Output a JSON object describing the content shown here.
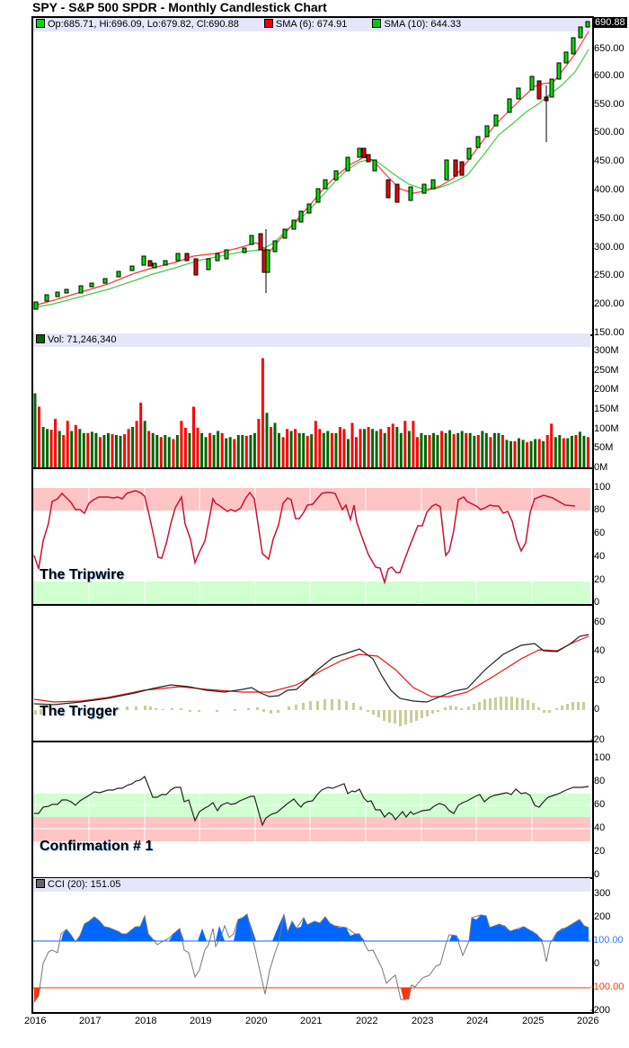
{
  "header": {
    "title": "SPY - S&P 500 SPDR - Monthly Candlestick Chart"
  },
  "price_panel": {
    "legend": {
      "ohlc": "Op:685.71, Hi:696.09, Lo:679.82, Cl:690.88",
      "sma6": "SMA (6): 674.91",
      "sma10": "SMA (10): 644.33"
    },
    "last_price_tag": "690.88",
    "y_ticks": [
      "650.00",
      "600.00",
      "550.00",
      "500.00",
      "450.00",
      "400.00",
      "350.00",
      "300.00",
      "250.00",
      "200.00",
      "150.00"
    ]
  },
  "volume_panel": {
    "legend": "Vol: 71,246,340",
    "y_ticks": [
      "300M",
      "250M",
      "200M",
      "150M",
      "100M",
      "50M",
      "0M"
    ]
  },
  "tripwire_panel": {
    "label": "The Tripwire",
    "y_ticks": [
      "100",
      "80",
      "60",
      "40",
      "20",
      "0"
    ]
  },
  "trigger_panel": {
    "label": "The Trigger",
    "y_ticks": [
      "60",
      "40",
      "20",
      "0",
      "-20"
    ]
  },
  "confirmation_panel": {
    "label": "Confirmation # 1",
    "y_ticks": [
      "100",
      "80",
      "60",
      "40",
      "20",
      "0"
    ]
  },
  "cci_panel": {
    "legend": "CCI (20): 151.05",
    "y_ticks": [
      "300",
      "200",
      "100.00",
      "0",
      "-100.00",
      "-200"
    ]
  },
  "x_axis": {
    "labels": [
      "2016",
      "2017",
      "2018",
      "2019",
      "2020",
      "2021",
      "2022",
      "2023",
      "2024",
      "2025",
      "2026"
    ]
  },
  "colors": {
    "up": "#00dd00",
    "down": "#ee0000",
    "sma6": "#ff3333",
    "sma10": "#44cc44",
    "vol_up": "#006600",
    "vol_down": "#ff0000",
    "tripwire_line": "#cc1133",
    "overbought_band": "#ffc4c4",
    "oversold_band": "#d0ffd0",
    "legend_bg": "#e6e6fa",
    "macd_hist": "#cccc99",
    "cci_fill_pos": "#0066ff",
    "cci_fill_neg": "#ff3300"
  },
  "chart_data": [
    {
      "type": "candlestick",
      "title": "SPY - S&P 500 SPDR - Monthly Candlestick Chart",
      "x_range": [
        "2016-01",
        "2026-01"
      ],
      "ylim": [
        150,
        700
      ],
      "closes_approx": [
        {
          "x": "2016-01",
          "y": 193
        },
        {
          "x": "2016-06",
          "y": 209
        },
        {
          "x": "2017-01",
          "y": 227
        },
        {
          "x": "2017-06",
          "y": 242
        },
        {
          "x": "2018-01",
          "y": 281
        },
        {
          "x": "2018-03",
          "y": 263
        },
        {
          "x": "2018-09",
          "y": 290
        },
        {
          "x": "2018-12",
          "y": 250
        },
        {
          "x": "2019-06",
          "y": 294
        },
        {
          "x": "2019-12",
          "y": 321
        },
        {
          "x": "2020-02",
          "y": 296
        },
        {
          "x": "2020-03",
          "y": 257
        },
        {
          "x": "2020-06",
          "y": 308
        },
        {
          "x": "2020-12",
          "y": 373
        },
        {
          "x": "2021-06",
          "y": 428
        },
        {
          "x": "2021-12",
          "y": 474
        },
        {
          "x": "2022-06",
          "y": 377
        },
        {
          "x": "2022-09",
          "y": 357
        },
        {
          "x": "2022-12",
          "y": 383
        },
        {
          "x": "2023-06",
          "y": 443
        },
        {
          "x": "2023-10",
          "y": 418
        },
        {
          "x": "2023-12",
          "y": 475
        },
        {
          "x": "2024-06",
          "y": 544
        },
        {
          "x": "2024-12",
          "y": 586
        },
        {
          "x": "2025-03",
          "y": 560
        },
        {
          "x": "2025-04",
          "y": 554
        },
        {
          "x": "2025-06",
          "y": 617
        },
        {
          "x": "2025-09",
          "y": 666
        },
        {
          "x": "2025-12",
          "y": 684
        },
        {
          "x": "2026-01",
          "y": 690.88
        }
      ],
      "series": [
        {
          "name": "SMA (6)",
          "last": 674.91
        },
        {
          "name": "SMA (10)",
          "last": 644.33
        }
      ],
      "legend": [
        "Op:685.71, Hi:696.09, Lo:679.82, Cl:690.88",
        "SMA (6): 674.91",
        "SMA (10): 644.33"
      ]
    },
    {
      "type": "bar",
      "title": "Vol: 71,246,340",
      "ylim": [
        0,
        300000000
      ],
      "notes": "Monthly volume bars; green = up month, red = down month. Peak ~270M in 2020-03.",
      "values_approx_M": [
        183,
        150,
        100,
        95,
        93,
        120,
        90,
        80,
        115,
        90,
        105,
        95,
        85,
        85,
        88,
        85,
        75,
        80,
        85,
        82,
        80,
        78,
        82,
        95,
        100,
        115,
        160,
        115,
        90,
        85,
        80,
        75,
        80,
        75,
        70,
        80,
        115,
        98,
        85,
        150,
        98,
        85,
        75,
        85,
        80,
        90,
        85,
        72,
        75,
        70,
        80,
        80,
        78,
        80,
        85,
        120,
        270,
        135,
        100,
        110,
        85,
        75,
        95,
        90,
        95,
        85,
        85,
        78,
        82,
        115,
        95,
        85,
        90,
        85,
        85,
        100,
        95,
        70,
        110,
        75,
        95,
        95,
        100,
        95,
        90,
        95,
        85,
        100,
        108,
        100,
        85,
        115,
        90,
        115,
        75,
        85,
        80,
        80,
        85,
        80,
        90,
        85,
        92,
        82,
        85,
        90,
        85,
        85,
        78,
        80,
        90,
        85,
        75,
        85,
        85,
        80,
        68,
        65,
        65,
        72,
        68,
        62,
        65,
        70,
        70,
        65,
        80,
        108,
        75,
        80,
        72,
        72,
        78,
        80,
        88,
        78,
        75
      ]
    },
    {
      "type": "line",
      "title": "The Tripwire",
      "ylim": [
        0,
        100
      ],
      "bands": [
        {
          "from": 80,
          "to": 100,
          "color": "overbought"
        },
        {
          "from": 0,
          "to": 20,
          "color": "oversold"
        }
      ],
      "x": [
        "2016-01",
        "2016-02",
        "2016-05",
        "2016-07",
        "2016-09",
        "2016-11",
        "2017-01",
        "2017-06",
        "2017-11",
        "2018-01",
        "2018-03",
        "2018-04",
        "2018-08",
        "2018-10",
        "2018-12",
        "2019-01",
        "2019-03",
        "2019-06",
        "2019-09",
        "2019-11",
        "2020-01",
        "2020-04",
        "2020-06",
        "2020-09",
        "2020-11",
        "2021-03",
        "2021-06",
        "2021-11",
        "2022-01",
        "2022-03",
        "2022-06",
        "2022-09",
        "2022-10",
        "2022-12",
        "2023-05",
        "2023-07",
        "2023-10",
        "2023-11",
        "2024-01",
        "2024-06",
        "2024-10",
        "2024-12",
        "2025-01",
        "2025-04",
        "2025-06",
        "2025-08",
        "2025-10",
        "2026-01"
      ],
      "y": [
        42,
        30,
        88,
        95,
        84,
        82,
        90,
        93,
        97,
        95,
        55,
        40,
        92,
        72,
        35,
        40,
        55,
        92,
        83,
        83,
        94,
        48,
        38,
        90,
        90,
        92,
        96,
        97,
        86,
        68,
        42,
        20,
        31,
        25,
        70,
        90,
        48,
        50,
        93,
        85,
        85,
        90,
        88,
        80,
        46,
        80,
        97,
        89
      ]
    },
    {
      "type": "line",
      "title": "The Trigger",
      "ylim": [
        -20,
        65
      ],
      "series": [
        {
          "name": "MACD",
          "x": [
            "2016",
            "2017",
            "2018",
            "2019",
            "2020",
            "2020-06",
            "2021",
            "2021-06",
            "2022",
            "2022-06",
            "2023",
            "2023-06",
            "2024",
            "2024-06",
            "2025",
            "2025-06",
            "2026"
          ],
          "y": [
            6,
            9,
            15,
            12,
            13,
            10,
            20,
            32,
            42,
            22,
            5,
            9,
            24,
            38,
            46,
            40,
            53
          ]
        },
        {
          "name": "Signal",
          "x": [
            "2016",
            "2017",
            "2018",
            "2019",
            "2020",
            "2020-06",
            "2021",
            "2021-06",
            "2022",
            "2022-06",
            "2023",
            "2023-06",
            "2024",
            "2024-06",
            "2025",
            "2025-06",
            "2026"
          ],
          "y": [
            8,
            9,
            14,
            13,
            12,
            13,
            17,
            28,
            36,
            28,
            12,
            10,
            18,
            30,
            40,
            40,
            47
          ]
        },
        {
          "name": "Histogram",
          "x": [
            "2016",
            "2017",
            "2018",
            "2019",
            "2020",
            "2021",
            "2021-06",
            "2022",
            "2022-08",
            "2023",
            "2023-06",
            "2024",
            "2024-06",
            "2025",
            "2025-06",
            "2026"
          ],
          "y": [
            -2,
            2,
            2,
            -1,
            -2,
            2,
            6,
            8,
            -12,
            -6,
            2,
            6,
            10,
            6,
            -2,
            6
          ]
        }
      ]
    },
    {
      "type": "line",
      "title": "Confirmation # 1",
      "ylim": [
        0,
        100
      ],
      "bands": [
        {
          "from": 50,
          "to": 70,
          "color": "green"
        },
        {
          "from": 30,
          "to": 50,
          "color": "red"
        }
      ],
      "x": [
        "2016-01",
        "2016-06",
        "2017-01",
        "2017-06",
        "2018-01",
        "2018-03",
        "2018-09",
        "2018-12",
        "2019-06",
        "2019-12",
        "2020-03",
        "2020-06",
        "2020-12",
        "2021-06",
        "2021-12",
        "2022-03",
        "2022-06",
        "2022-09",
        "2022-12",
        "2023-06",
        "2023-10",
        "2024-01",
        "2024-06",
        "2024-12",
        "2025-03",
        "2025-04",
        "2025-06",
        "2025-10",
        "2026-01"
      ],
      "y": [
        53,
        60,
        70,
        76,
        87,
        68,
        76,
        47,
        62,
        69,
        41,
        57,
        67,
        75,
        75,
        62,
        50,
        43,
        49,
        57,
        53,
        63,
        70,
        73,
        67,
        57,
        63,
        75,
        76
      ]
    },
    {
      "type": "area",
      "title": "CCI (20): 151.05",
      "ylim": [
        -200,
        320
      ],
      "reference_lines": [
        100,
        -100
      ],
      "x": [
        "2016-01",
        "2016-02",
        "2016-04",
        "2016-07",
        "2016-09",
        "2016-11",
        "2017-01",
        "2017-06",
        "2017-11",
        "2018-01",
        "2018-03",
        "2018-05",
        "2018-09",
        "2018-12",
        "2019-02",
        "2019-04",
        "2019-06",
        "2019-09",
        "2019-12",
        "2020-03",
        "2020-06",
        "2020-08",
        "2020-11",
        "2021-01",
        "2021-06",
        "2021-12",
        "2022-03",
        "2022-06",
        "2022-09",
        "2022-11",
        "2023-01",
        "2023-06",
        "2023-10",
        "2024-01",
        "2024-03",
        "2024-06",
        "2024-12",
        "2025-04",
        "2025-07",
        "2025-10",
        "2026-01"
      ],
      "y": [
        -165,
        -140,
        40,
        130,
        90,
        170,
        200,
        160,
        180,
        210,
        130,
        90,
        150,
        -70,
        30,
        160,
        110,
        210,
        215,
        -130,
        20,
        220,
        130,
        200,
        160,
        120,
        50,
        -80,
        -160,
        -90,
        -30,
        130,
        40,
        200,
        210,
        150,
        120,
        10,
        150,
        200,
        151
      ]
    }
  ]
}
